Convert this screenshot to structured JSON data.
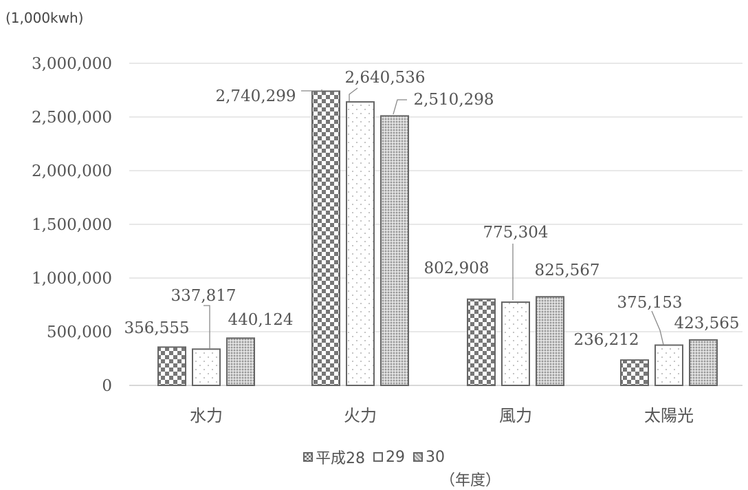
{
  "unit_label": "(1,000kwh)",
  "year_label": "（年度）",
  "colors": {
    "bar_stroke": "#666666",
    "pattern_dark": "#777777",
    "grid": "#d9d9d9",
    "text": "#555555"
  },
  "chart_data": {
    "type": "bar",
    "categories": [
      "水力",
      "火力",
      "風力",
      "太陽光"
    ],
    "series": [
      {
        "name": "平成28",
        "values": [
          356555,
          2740299,
          802908,
          236212
        ],
        "labels": [
          "356,555",
          "2,740,299",
          "802,908",
          "236,212"
        ]
      },
      {
        "name": "29",
        "values": [
          337817,
          2640536,
          775304,
          375153
        ],
        "labels": [
          "337,817",
          "2,640,536",
          "775,304",
          "375,153"
        ]
      },
      {
        "name": "30",
        "values": [
          440124,
          2510298,
          825567,
          423565
        ],
        "labels": [
          "440,124",
          "2,510,298",
          "825,567",
          "423,565"
        ]
      }
    ],
    "ylim": [
      0,
      3000000
    ],
    "yticks": [
      "0",
      "500,000",
      "1,000,000",
      "1,500,000",
      "2,000,000",
      "2,500,000",
      "3,000,000"
    ],
    "grid": true,
    "legend_position": "bottom"
  }
}
